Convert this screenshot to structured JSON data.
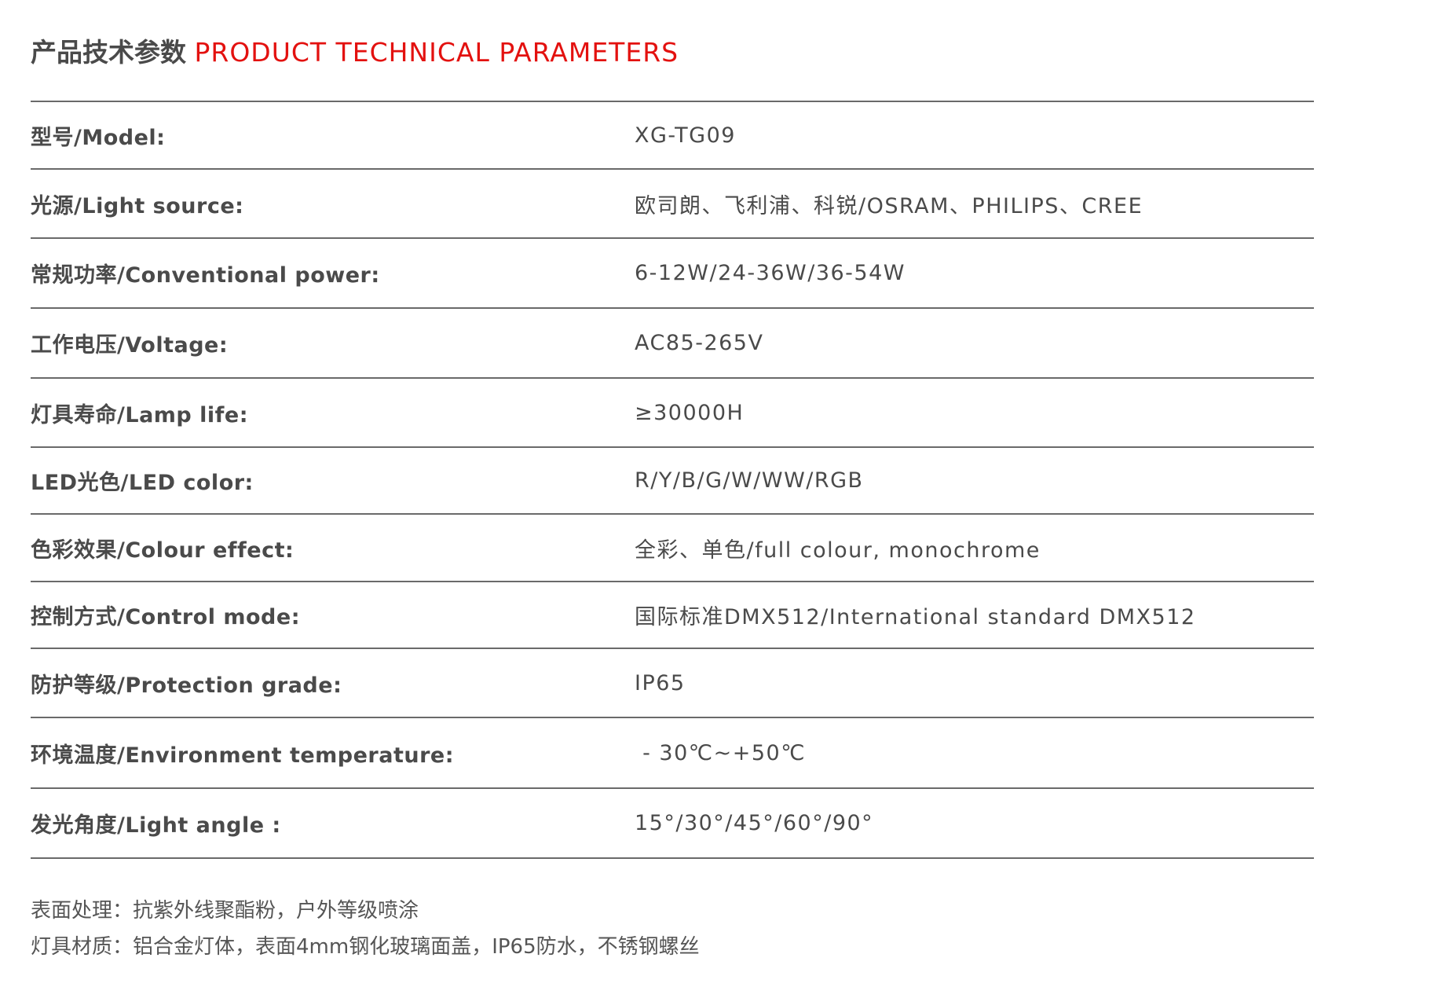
{
  "title": {
    "cn": "产品技术参数",
    "en": "PRODUCT TECHNICAL PARAMETERS"
  },
  "colors": {
    "accent": "#e3110f",
    "text": "#4a4a4a",
    "rule": "#6a6a6a"
  },
  "params": [
    {
      "label": "型号/Model:",
      "value": "XG-TG09"
    },
    {
      "label": "光源/Light source:",
      "value": "欧司朗、飞利浦、科锐/OSRAM、PHILIPS、CREE"
    },
    {
      "label": "常规功率/Conventional power:",
      "value": "6-12W/24-36W/36-54W"
    },
    {
      "label": "工作电压/Voltage:",
      "value": "AC85-265V"
    },
    {
      "label": "灯具寿命/Lamp life:",
      "value": "≥30000H"
    },
    {
      "label": "LED光色/LED color:",
      "value": "R/Y/B/G/W/WW/RGB"
    },
    {
      "label": "色彩效果/Colour effect:",
      "value": "全彩、单色/full colour, monochrome"
    },
    {
      "label": "控制方式/Control mode:",
      "value": "国际标准DMX512/International standard DMX512"
    },
    {
      "label": "防护等级/Protection grade:",
      "value": "IP65"
    },
    {
      "label": "环境温度/Environment temperature:",
      "value": " - 30℃~+50℃"
    },
    {
      "label": "发光角度/Light angle :",
      "value": "15°/30°/45°/60°/90°"
    }
  ],
  "notes": [
    "表面处理：抗紫外线聚酯粉，户外等级喷涂",
    "灯具材质：铝合金灯体，表面4mm钢化玻璃面盖，IP65防水，不锈钢螺丝"
  ]
}
